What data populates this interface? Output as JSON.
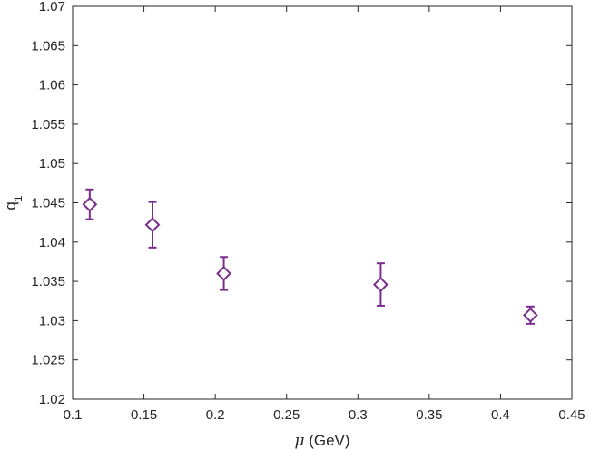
{
  "chart_data": {
    "type": "scatter",
    "xlabel": "μ (GeV)",
    "xlabel_symbol": "μ",
    "xlabel_unit": " (GeV)",
    "ylabel_base": "q",
    "ylabel_sub": "1",
    "xlim": [
      0.1,
      0.45
    ],
    "ylim": [
      1.02,
      1.07
    ],
    "xticks": [
      "0.1",
      "0.15",
      "0.2",
      "0.25",
      "0.3",
      "0.35",
      "0.4",
      "0.45"
    ],
    "yticks": [
      "1.02",
      "1.025",
      "1.03",
      "1.035",
      "1.04",
      "1.045",
      "1.05",
      "1.055",
      "1.06",
      "1.065",
      "1.07"
    ],
    "grid": false,
    "marker": "diamond",
    "color": "#7b2d8e",
    "series": [
      {
        "points": [
          {
            "x": 0.112,
            "y": 1.0448,
            "err": 0.0019
          },
          {
            "x": 0.156,
            "y": 1.0422,
            "err": 0.0029
          },
          {
            "x": 0.206,
            "y": 1.036,
            "err": 0.0021
          },
          {
            "x": 0.316,
            "y": 1.0346,
            "err": 0.0027
          },
          {
            "x": 0.421,
            "y": 1.0307,
            "err": 0.0011
          }
        ]
      }
    ]
  }
}
